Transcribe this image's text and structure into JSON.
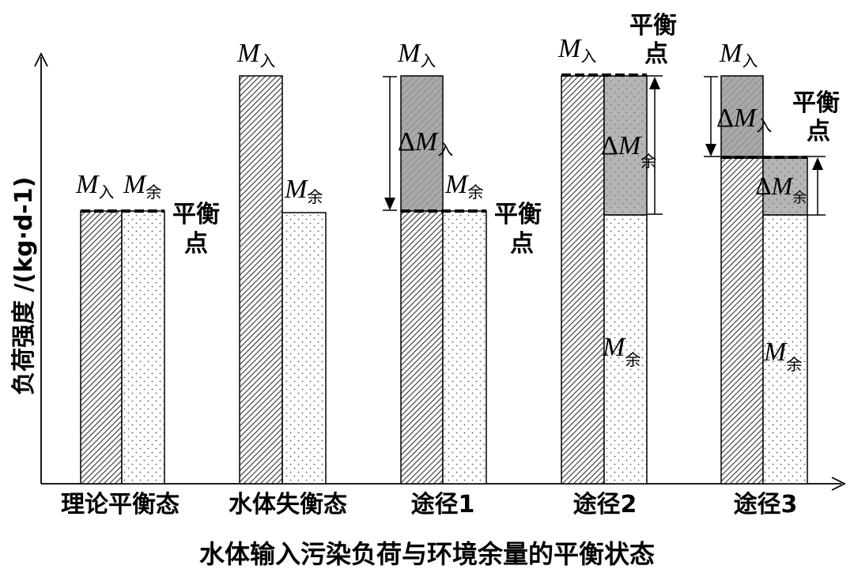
{
  "figure": {
    "y_axis_label": "负荷强度 /(kg·d-1)",
    "x_axis_label": "水体输入污染负荷与环境余量的平衡状态",
    "categories": [
      "理论平衡态",
      "水体失衡态",
      "途径1",
      "途径2",
      "途径3"
    ],
    "balance_point": [
      "平衡",
      "点"
    ],
    "M": "M",
    "sub_in": "入",
    "sub_rest": "余",
    "delta": "Δ"
  }
}
